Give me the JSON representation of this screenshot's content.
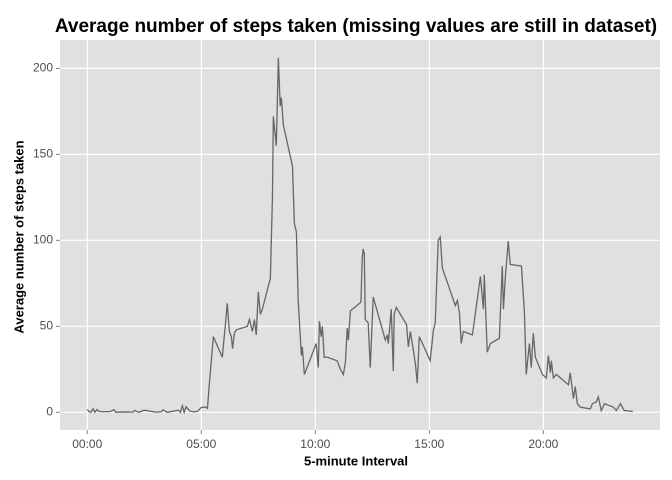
{
  "chart_data": {
    "type": "line",
    "title": "Average number of steps taken (missing values are still in dataset)",
    "x_label": "5-minute Interval",
    "y_label": "Average number of steps taken",
    "x": [
      0,
      0.08,
      0.17,
      0.25,
      0.33,
      0.42,
      0.5,
      0.67,
      0.83,
      1.0,
      1.17,
      1.25,
      1.5,
      2.0,
      2.08,
      2.25,
      2.5,
      3.0,
      3.25,
      3.33,
      3.5,
      4.0,
      4.08,
      4.17,
      4.25,
      4.33,
      4.42,
      4.5,
      4.67,
      4.83,
      5.0,
      5.18,
      5.27,
      5.35,
      5.53,
      5.92,
      6.05,
      6.14,
      6.23,
      6.32,
      6.37,
      6.45,
      6.54,
      7.02,
      7.11,
      7.24,
      7.33,
      7.41,
      7.5,
      7.59,
      7.68,
      8.03,
      8.12,
      8.16,
      8.29,
      8.38,
      8.46,
      8.51,
      8.6,
      9.0,
      9.08,
      9.17,
      9.25,
      9.39,
      9.43,
      9.52,
      10.04,
      10.13,
      10.18,
      10.26,
      10.31,
      10.39,
      10.53,
      10.96,
      11.1,
      11.23,
      11.32,
      11.4,
      11.45,
      11.54,
      12.0,
      12.06,
      12.1,
      12.15,
      12.19,
      12.32,
      12.41,
      12.54,
      13.07,
      13.16,
      13.2,
      13.33,
      13.42,
      13.46,
      13.55,
      14.0,
      14.08,
      14.17,
      14.3,
      14.39,
      14.47,
      14.56,
      15.04,
      15.18,
      15.26,
      15.39,
      15.48,
      15.57,
      16.14,
      16.23,
      16.32,
      16.4,
      16.49,
      16.89,
      17.24,
      17.37,
      17.41,
      17.54,
      17.68,
      18.07,
      18.2,
      18.25,
      18.33,
      18.46,
      18.55,
      19.04,
      19.17,
      19.25,
      19.39,
      19.47,
      19.56,
      19.65,
      19.96,
      20.13,
      20.22,
      20.31,
      20.35,
      20.44,
      20.57,
      21.1,
      21.18,
      21.32,
      21.4,
      21.49,
      21.62,
      22.06,
      22.15,
      22.32,
      22.41,
      22.54,
      22.68,
      23.07,
      23.2,
      23.38,
      23.55,
      23.92
    ],
    "values": [
      1.7,
      0.3,
      0.1,
      2.1,
      0.0,
      1.6,
      0.6,
      0.3,
      0.4,
      0.4,
      1.5,
      0.0,
      0.2,
      0.1,
      1.1,
      0.0,
      1.2,
      0.1,
      0.3,
      1.5,
      0.0,
      1.2,
      0.0,
      3.8,
      0.0,
      3.2,
      1.9,
      0.7,
      0.3,
      0.5,
      2.8,
      3.1,
      2.3,
      16,
      44,
      32,
      50,
      63.4,
      47,
      44,
      37,
      46,
      48,
      50,
      54,
      47,
      54,
      45,
      70,
      57,
      60,
      78,
      125,
      172,
      155,
      206.2,
      178,
      183,
      167,
      143,
      110,
      105,
      65,
      33,
      38,
      22,
      40,
      26,
      53,
      44,
      50,
      32,
      32,
      30,
      25,
      22,
      29,
      49,
      42,
      59,
      64,
      90,
      95,
      92,
      54,
      52,
      26,
      67,
      42,
      45,
      40,
      60,
      24,
      57,
      61,
      51,
      38,
      47,
      36,
      28,
      17,
      44,
      30,
      48,
      52,
      100,
      102,
      84,
      62,
      65,
      58,
      40,
      47,
      45,
      79,
      60,
      80,
      35,
      40,
      43,
      85,
      60,
      78,
      99.5,
      86,
      85,
      58,
      22,
      40,
      26,
      46,
      32,
      22,
      20,
      33,
      23,
      30,
      20,
      22,
      16,
      23,
      8,
      15,
      5,
      3,
      2,
      5,
      6,
      9,
      1,
      5,
      3,
      1,
      5,
      1,
      0.5
    ],
    "color": "#666666",
    "xlim": [
      -1.196,
      25.116
    ],
    "xticks": [
      {
        "value": 0,
        "label": "00:00"
      },
      {
        "value": 5,
        "label": "05:00"
      },
      {
        "value": 10,
        "label": "10:00"
      },
      {
        "value": 15,
        "label": "15:00"
      },
      {
        "value": 20,
        "label": "20:00"
      }
    ],
    "ylim": [
      -10.3,
      216.5
    ],
    "yticks": [
      0,
      50,
      100,
      150,
      200
    ],
    "grid": true
  }
}
